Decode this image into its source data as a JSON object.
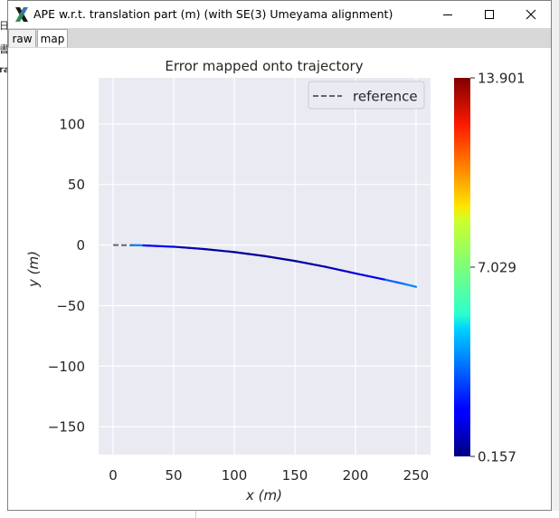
{
  "window": {
    "title": "APE w.r.t. translation part (m) (with SE(3) Umeyama alignment)",
    "icon": "x-app-icon",
    "controls": [
      "minimize",
      "maximize",
      "close"
    ]
  },
  "tabs": [
    {
      "label": "raw",
      "active": false
    },
    {
      "label": "map",
      "active": true
    }
  ],
  "background_fragments": [
    "日",
    "書",
    "ra"
  ],
  "chart_data": {
    "type": "line",
    "title": "Error mapped onto trajectory",
    "xlabel": "x (m)",
    "ylabel": "y (m)",
    "xlim": [
      -12,
      262
    ],
    "ylim": [
      -173,
      138
    ],
    "xticks": [
      0,
      50,
      100,
      150,
      200,
      250
    ],
    "yticks": [
      100,
      50,
      0,
      -50,
      -100,
      -150
    ],
    "xtick_labels": [
      "0",
      "50",
      "100",
      "150",
      "200",
      "250"
    ],
    "ytick_labels": [
      "100",
      "50",
      "0",
      "−50",
      "−100",
      "−150"
    ],
    "grid": true,
    "legend": {
      "position": "top-right",
      "entries": [
        "reference"
      ]
    },
    "series": [
      {
        "name": "reference",
        "style": "dashed",
        "color": "#666666",
        "x": [
          0,
          25,
          50,
          75,
          100,
          125,
          150,
          175,
          200,
          225,
          250
        ],
        "y": [
          0,
          -0.3,
          -1.4,
          -3.3,
          -5.8,
          -9.1,
          -13.1,
          -17.9,
          -23.4,
          -28.7,
          -34.5
        ]
      }
    ],
    "trajectory": {
      "x": [
        15,
        25,
        50,
        75,
        100,
        125,
        150,
        175,
        200,
        225,
        240,
        250
      ],
      "y": [
        0,
        -0.3,
        -1.4,
        -3.3,
        -5.8,
        -9.1,
        -13.1,
        -17.9,
        -23.4,
        -28.7,
        -32.0,
        -34.5
      ],
      "error": [
        5.0,
        2.5,
        1.0,
        0.6,
        0.4,
        0.4,
        0.5,
        0.8,
        1.2,
        2.0,
        4.5,
        3.0
      ]
    },
    "colorbar": {
      "min": 0.157,
      "max": 13.901,
      "tick_labels": [
        "13.901",
        "7.029",
        "0.157"
      ],
      "tick_values": [
        13.901,
        7.029,
        0.157
      ],
      "colormap": "jet"
    }
  }
}
